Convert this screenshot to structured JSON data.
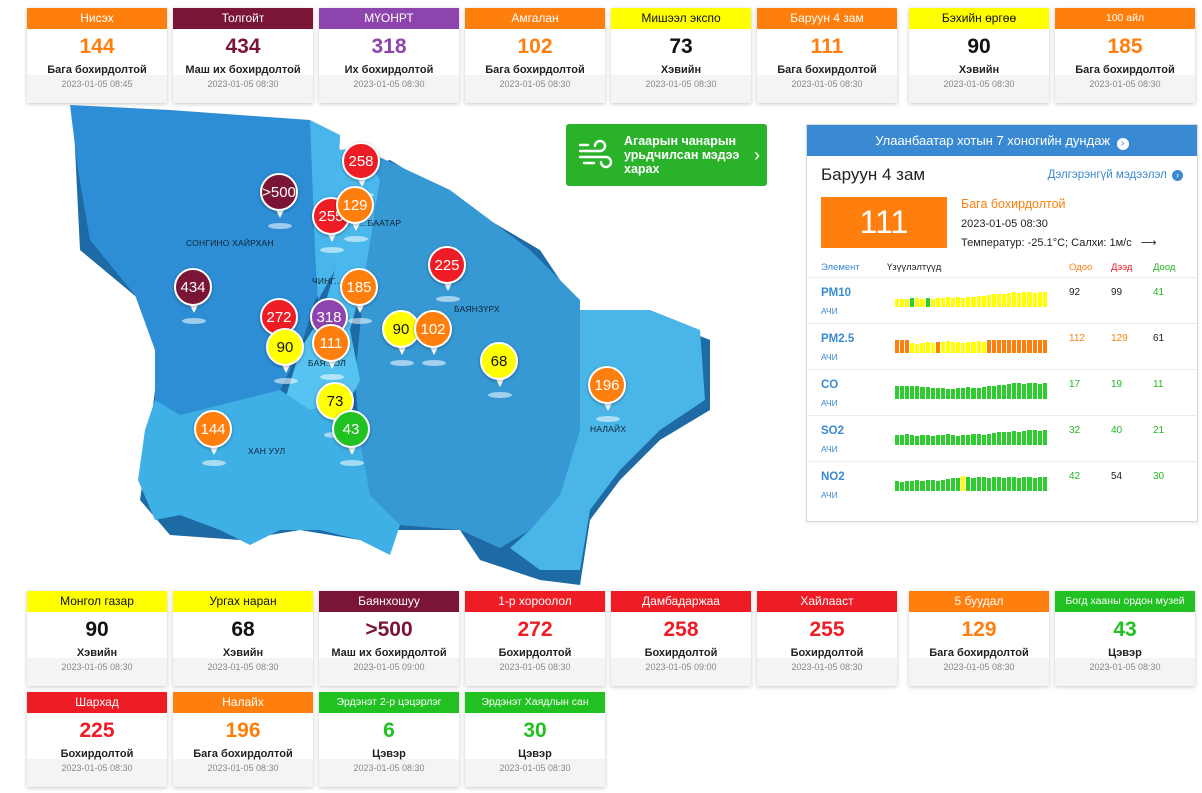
{
  "cards": [
    {
      "name": "Нисэх",
      "value": "144",
      "status": "Бага бохирдолтой",
      "time": "2023-01-05 08:45",
      "bg": "#ff7f0e",
      "fg": "#ff7f0e"
    },
    {
      "name": "Толгойт",
      "value": "434",
      "status": "Маш их бохирдолтой",
      "time": "2023-01-05 08:30",
      "bg": "#7a1535",
      "fg": "#7a1535"
    },
    {
      "name": "МҮОНРТ",
      "value": "318",
      "status": "Их бохирдолтой",
      "time": "2023-01-05 08:30",
      "bg": "#8e44ad",
      "fg": "#8e44ad"
    },
    {
      "name": "Амгалан",
      "value": "102",
      "status": "Бага бохирдолтой",
      "time": "2023-01-05 08:30",
      "bg": "#ff7f0e",
      "fg": "#ff7f0e"
    },
    {
      "name": "Мишээл экспо",
      "value": "73",
      "status": "Хэвийн",
      "time": "2023-01-05 08:30",
      "bg": "#ffff00",
      "fg": "#111111"
    },
    {
      "name": "Баруун 4 зам",
      "value": "111",
      "status": "Бага бохирдолтой",
      "time": "2023-01-05 08:30",
      "bg": "#ff7f0e",
      "fg": "#ff7f0e"
    },
    {
      "name": "Бэхийн өргөө",
      "value": "90",
      "status": "Хэвийн",
      "time": "2023-01-05 08:30",
      "bg": "#ffff00",
      "fg": "#111111"
    },
    {
      "name": "100 айл",
      "value": "185",
      "status": "Бага бохирдолтой",
      "time": "2023-01-05 08:30",
      "bg": "#ff7f0e",
      "fg": "#ff7f0e"
    },
    {
      "name": "Монгол газар",
      "value": "90",
      "status": "Хэвийн",
      "time": "2023-01-05 08:30",
      "bg": "#ffff00",
      "fg": "#111111"
    },
    {
      "name": "Ургах наран",
      "value": "68",
      "status": "Хэвийн",
      "time": "2023-01-05 08:30",
      "bg": "#ffff00",
      "fg": "#111111"
    },
    {
      "name": "Баянхошуу",
      "value": ">500",
      "status": "Маш их бохирдолтой",
      "time": "2023-01-05 09:00",
      "bg": "#7a1535",
      "fg": "#7a1535"
    },
    {
      "name": "1-р хороолол",
      "value": "272",
      "status": "Бохирдолтой",
      "time": "2023-01-05 08:30",
      "bg": "#ee1c25",
      "fg": "#ee1c25"
    },
    {
      "name": "Дамбадаржаа",
      "value": "258",
      "status": "Бохирдолтой",
      "time": "2023-01-05 09:00",
      "bg": "#ee1c25",
      "fg": "#ee1c25"
    },
    {
      "name": "Хайлааст",
      "value": "255",
      "status": "Бохирдолтой",
      "time": "2023-01-05 08:30",
      "bg": "#ee1c25",
      "fg": "#ee1c25"
    },
    {
      "name": "5 буудал",
      "value": "129",
      "status": "Бага бохирдолтой",
      "time": "2023-01-05 08:30",
      "bg": "#ff7f0e",
      "fg": "#ff7f0e"
    },
    {
      "name": "Богд хааны ордон музей",
      "value": "43",
      "status": "Цэвэр",
      "time": "2023-01-05 08:30",
      "bg": "#22c122",
      "fg": "#22c122"
    },
    {
      "name": "Шархад",
      "value": "225",
      "status": "Бохирдолтой",
      "time": "2023-01-05 08:30",
      "bg": "#ee1c25",
      "fg": "#ee1c25"
    },
    {
      "name": "Налайх",
      "value": "196",
      "status": "Бага бохирдолтой",
      "time": "2023-01-05 08:30",
      "bg": "#ff7f0e",
      "fg": "#ff7f0e"
    },
    {
      "name": "Эрдэнэт 2-р цэцэрлэг",
      "value": "6",
      "status": "Цэвэр",
      "time": "2023-01-05 08:30",
      "bg": "#22c122",
      "fg": "#22c122"
    },
    {
      "name": "Эрдэнэт Хаядлын сан",
      "value": "30",
      "status": "Цэвэр",
      "time": "2023-01-05 08:30",
      "bg": "#22c122",
      "fg": "#22c122"
    }
  ],
  "map": {
    "districts": [
      "СОНГИНО ХАЙРХАН",
      "ЧИНГ...",
      "ХАН УУЛ",
      "БАЯНЗҮРХ",
      "НАЛАЙХ",
      "...БААТАР",
      "БАЯ...ОЛ"
    ],
    "pins": [
      {
        "label": ">500",
        "color": "#7a1535",
        "text": "#ffffff"
      },
      {
        "label": "258",
        "color": "#ee1c25",
        "text": "#ffffff"
      },
      {
        "label": "255",
        "color": "#ee1c25",
        "text": "#ffffff"
      },
      {
        "label": "129",
        "color": "#ff7f0e",
        "text": "#ffffff"
      },
      {
        "label": "225",
        "color": "#ee1c25",
        "text": "#ffffff"
      },
      {
        "label": "434",
        "color": "#7a1535",
        "text": "#ffffff"
      },
      {
        "label": "185",
        "color": "#ff7f0e",
        "text": "#ffffff"
      },
      {
        "label": "272",
        "color": "#ee1c25",
        "text": "#ffffff"
      },
      {
        "label": "318",
        "color": "#8e44ad",
        "text": "#ffffff"
      },
      {
        "label": "90",
        "color": "#ffff00",
        "text": "#111111"
      },
      {
        "label": "90",
        "color": "#ffff00",
        "text": "#111111"
      },
      {
        "label": "111",
        "color": "#ff7f0e",
        "text": "#ffffff"
      },
      {
        "label": "102",
        "color": "#ff7f0e",
        "text": "#ffffff"
      },
      {
        "label": "68",
        "color": "#ffff00",
        "text": "#111111"
      },
      {
        "label": "196",
        "color": "#ff7f0e",
        "text": "#ffffff"
      },
      {
        "label": "73",
        "color": "#ffff00",
        "text": "#111111"
      },
      {
        "label": "43",
        "color": "#22c122",
        "text": "#ffffff"
      },
      {
        "label": "144",
        "color": "#ff7f0e",
        "text": "#ffffff"
      }
    ]
  },
  "forecast": {
    "label": "Агаарын чанарын урьдчилсан мэдээ харах",
    "icon": "wind-icon",
    "arrow": "›"
  },
  "panel": {
    "header": "Улаанбаатар хотын 7 хоногийн дундаж",
    "station": "Баруун 4 зам",
    "more_link": "Дэлгэрэнгүй мэдээлэл",
    "aqi": "111",
    "status": "Бага бохирдолтой",
    "time": "2023-01-05 08:30",
    "weather": "Температур: -25.1°C; Салхи: 1м/с",
    "columns": {
      "element": "Элемент",
      "indicators": "Үзүүлэлтүүд",
      "current": "Одоо",
      "max": "Дээд",
      "min": "Доод"
    },
    "elements": [
      {
        "name": "PM10",
        "sub": "АЧИ",
        "current": "92",
        "max": "99",
        "min": "41",
        "current_color": "#222222",
        "max_color": "#222222",
        "min_color": "#22b622",
        "bars": [
          0.45,
          0.45,
          0.45,
          0.5,
          0.5,
          0.45,
          0.5,
          0.45,
          0.5,
          0.5,
          0.55,
          0.5,
          0.55,
          0.5,
          0.55,
          0.55,
          0.6,
          0.6,
          0.65,
          0.7,
          0.75,
          0.75,
          0.8,
          0.85,
          0.8,
          0.85,
          0.85,
          0.8,
          0.85,
          0.85
        ],
        "colors": [
          "#ffff00",
          "#ffff00",
          "#ffff00",
          "#2fcc2f",
          "#ffff00",
          "#ffff00",
          "#2fcc2f",
          "#ffff00",
          "#ffff00",
          "#ffff00",
          "#ffff00",
          "#ffff00",
          "#ffff00",
          "#ffff00",
          "#ffff00",
          "#ffff00",
          "#ffff00",
          "#ffff00",
          "#ffff00",
          "#ffff00",
          "#ffff00",
          "#ffff00",
          "#ffff00",
          "#ffff00",
          "#ffff00",
          "#ffff00",
          "#ffff00",
          "#ffff00",
          "#ffff00",
          "#ffff00"
        ]
      },
      {
        "name": "PM2.5",
        "sub": "АЧИ",
        "current": "112",
        "max": "129",
        "min": "61",
        "current_color": "#ff7f0e",
        "max_color": "#ff7f0e",
        "min_color": "#222222",
        "bars": [
          0.7,
          0.75,
          0.7,
          0.55,
          0.5,
          0.55,
          0.6,
          0.55,
          0.6,
          0.6,
          0.65,
          0.6,
          0.6,
          0.55,
          0.6,
          0.6,
          0.65,
          0.6,
          0.7,
          0.7,
          0.75,
          0.75,
          0.7,
          0.75,
          0.75,
          0.7,
          0.75,
          0.75,
          0.7,
          0.75
        ],
        "colors": [
          "#ff7f0e",
          "#ff7f0e",
          "#ff7f0e",
          "#ffff00",
          "#ffff00",
          "#ffff00",
          "#ffff00",
          "#ffff00",
          "#ff7f0e",
          "#ffff00",
          "#ffff00",
          "#ffff00",
          "#ffff00",
          "#ffff00",
          "#ffff00",
          "#ffff00",
          "#ffff00",
          "#ffff00",
          "#ff7f0e",
          "#ff7f0e",
          "#ff7f0e",
          "#ff7f0e",
          "#ff7f0e",
          "#ff7f0e",
          "#ff7f0e",
          "#ff7f0e",
          "#ff7f0e",
          "#ff7f0e",
          "#ff7f0e",
          "#ff7f0e"
        ]
      },
      {
        "name": "CO",
        "sub": "АЧИ",
        "current": "17",
        "max": "19",
        "min": "11",
        "current_color": "#22b622",
        "max_color": "#22b622",
        "min_color": "#22b622",
        "bars": [
          0.7,
          0.75,
          0.7,
          0.7,
          0.7,
          0.65,
          0.65,
          0.6,
          0.6,
          0.6,
          0.55,
          0.55,
          0.6,
          0.6,
          0.65,
          0.6,
          0.6,
          0.65,
          0.7,
          0.75,
          0.8,
          0.8,
          0.85,
          0.9,
          0.9,
          0.85,
          0.9,
          0.9,
          0.85,
          0.9
        ],
        "colors": [
          "#2fcc2f",
          "#2fcc2f",
          "#2fcc2f",
          "#2fcc2f",
          "#2fcc2f",
          "#2fcc2f",
          "#2fcc2f",
          "#2fcc2f",
          "#2fcc2f",
          "#2fcc2f",
          "#2fcc2f",
          "#2fcc2f",
          "#2fcc2f",
          "#2fcc2f",
          "#2fcc2f",
          "#2fcc2f",
          "#2fcc2f",
          "#2fcc2f",
          "#2fcc2f",
          "#2fcc2f",
          "#2fcc2f",
          "#2fcc2f",
          "#2fcc2f",
          "#2fcc2f",
          "#2fcc2f",
          "#2fcc2f",
          "#2fcc2f",
          "#2fcc2f",
          "#2fcc2f",
          "#2fcc2f"
        ]
      },
      {
        "name": "SO2",
        "sub": "АЧИ",
        "current": "32",
        "max": "40",
        "min": "21",
        "current_color": "#22b622",
        "max_color": "#22b622",
        "min_color": "#22b622",
        "bars": [
          0.55,
          0.55,
          0.6,
          0.55,
          0.5,
          0.55,
          0.55,
          0.5,
          0.55,
          0.55,
          0.6,
          0.55,
          0.5,
          0.55,
          0.55,
          0.6,
          0.6,
          0.55,
          0.6,
          0.65,
          0.7,
          0.7,
          0.75,
          0.8,
          0.75,
          0.8,
          0.85,
          0.85,
          0.8,
          0.85
        ],
        "colors": [
          "#2fcc2f",
          "#2fcc2f",
          "#2fcc2f",
          "#2fcc2f",
          "#2fcc2f",
          "#2fcc2f",
          "#2fcc2f",
          "#2fcc2f",
          "#2fcc2f",
          "#2fcc2f",
          "#2fcc2f",
          "#2fcc2f",
          "#2fcc2f",
          "#2fcc2f",
          "#2fcc2f",
          "#2fcc2f",
          "#2fcc2f",
          "#2fcc2f",
          "#2fcc2f",
          "#2fcc2f",
          "#2fcc2f",
          "#2fcc2f",
          "#2fcc2f",
          "#2fcc2f",
          "#2fcc2f",
          "#2fcc2f",
          "#2fcc2f",
          "#2fcc2f",
          "#2fcc2f",
          "#2fcc2f"
        ]
      },
      {
        "name": "NO2",
        "sub": "АЧИ",
        "current": "42",
        "max": "54",
        "min": "30",
        "current_color": "#22b622",
        "max_color": "#222222",
        "min_color": "#22b622",
        "bars": [
          0.55,
          0.5,
          0.55,
          0.55,
          0.6,
          0.55,
          0.6,
          0.6,
          0.55,
          0.6,
          0.65,
          0.7,
          0.75,
          0.85,
          0.8,
          0.75,
          0.8,
          0.8,
          0.75,
          0.8,
          0.8,
          0.75,
          0.8,
          0.8,
          0.75,
          0.8,
          0.8,
          0.75,
          0.8,
          0.8
        ],
        "colors": [
          "#2fcc2f",
          "#2fcc2f",
          "#2fcc2f",
          "#2fcc2f",
          "#2fcc2f",
          "#2fcc2f",
          "#2fcc2f",
          "#2fcc2f",
          "#2fcc2f",
          "#2fcc2f",
          "#2fcc2f",
          "#2fcc2f",
          "#2fcc2f",
          "#ffff00",
          "#2fcc2f",
          "#2fcc2f",
          "#2fcc2f",
          "#2fcc2f",
          "#2fcc2f",
          "#2fcc2f",
          "#2fcc2f",
          "#2fcc2f",
          "#2fcc2f",
          "#2fcc2f",
          "#2fcc2f",
          "#2fcc2f",
          "#2fcc2f",
          "#2fcc2f",
          "#2fcc2f",
          "#2fcc2f"
        ]
      }
    ]
  }
}
